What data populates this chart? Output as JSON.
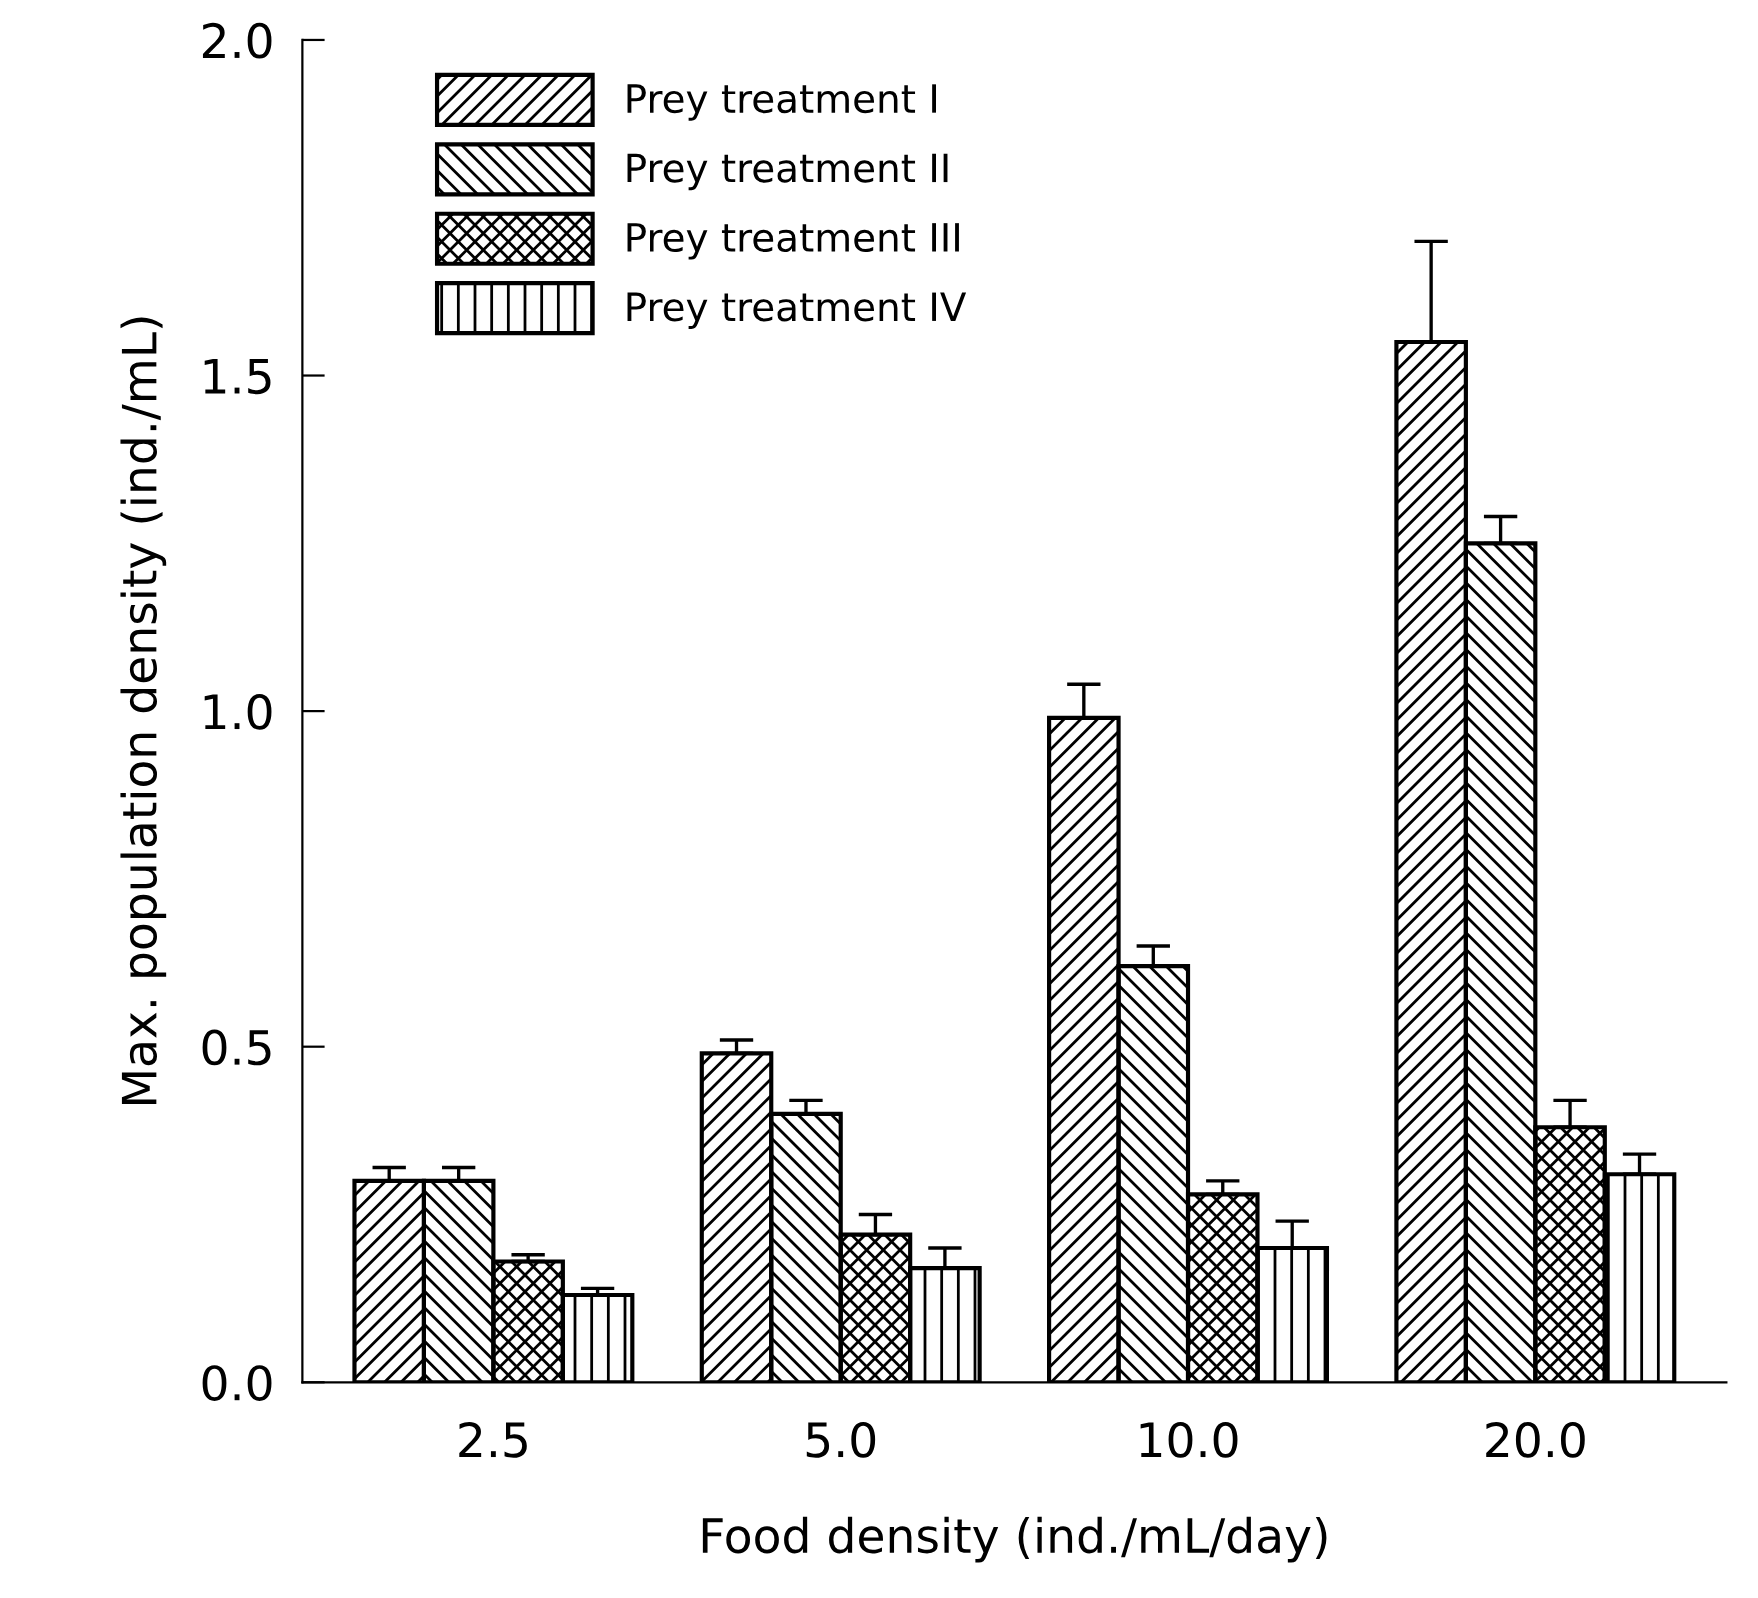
{
  "chart_data": {
    "type": "bar",
    "xlabel": "Food density (ind./mL/day)",
    "ylabel": "Max. population density (ind./mL)",
    "categories": [
      "2.5",
      "5.0",
      "10.0",
      "20.0"
    ],
    "series": [
      {
        "name": "Prey treatment I",
        "color": "#000000",
        "values": [
          0.3,
          0.49,
          0.99,
          1.55
        ],
        "errors": [
          [
            0.3,
            0.32
          ],
          [
            0.49,
            0.51
          ],
          [
            0.99,
            1.04
          ],
          [
            1.55,
            1.7
          ]
        ]
      },
      {
        "name": "Prey treatment II",
        "color": "#000000",
        "values": [
          0.3,
          0.4,
          0.62,
          1.25
        ],
        "errors": [
          [
            0.3,
            0.32
          ],
          [
            0.4,
            0.42
          ],
          [
            0.62,
            0.65
          ],
          [
            1.25,
            1.29
          ]
        ]
      },
      {
        "name": "Prey treatment III",
        "color": "#000000",
        "values": [
          0.18,
          0.22,
          0.28,
          0.38
        ],
        "errors": [
          [
            0.18,
            0.19
          ],
          [
            0.22,
            0.25
          ],
          [
            0.28,
            0.3
          ],
          [
            0.38,
            0.42
          ]
        ]
      },
      {
        "name": "Prey treatment IV",
        "color": "#000000",
        "values": [
          0.13,
          0.17,
          0.2,
          0.31
        ],
        "errors": [
          [
            0.13,
            0.14
          ],
          [
            0.17,
            0.2
          ],
          [
            0.2,
            0.24
          ],
          [
            0.31,
            0.34
          ]
        ]
      }
    ],
    "ylim": [
      0,
      2.0
    ],
    "yticks": [
      {
        "value": 0,
        "label": "0.0"
      },
      {
        "value": 0.5,
        "label": "0.5"
      },
      {
        "value": 1.0,
        "label": "1.0"
      },
      {
        "value": 1.5,
        "label": "1.5"
      },
      {
        "value": 2.0,
        "label": "2.0"
      }
    ],
    "legend": "top left",
    "grid": false
  }
}
